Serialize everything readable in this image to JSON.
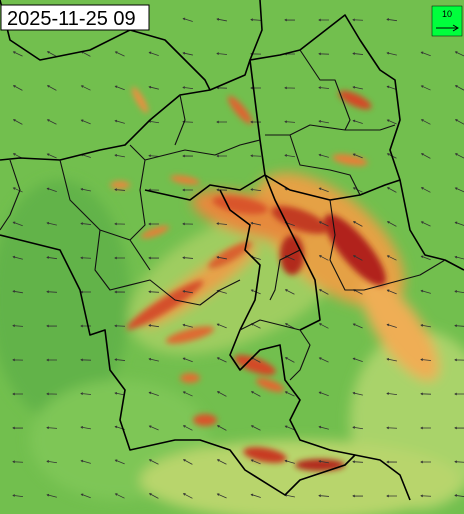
{
  "header": {
    "timestamp": "2025-11-25 09"
  },
  "legend": {
    "label": "10"
  }
}
